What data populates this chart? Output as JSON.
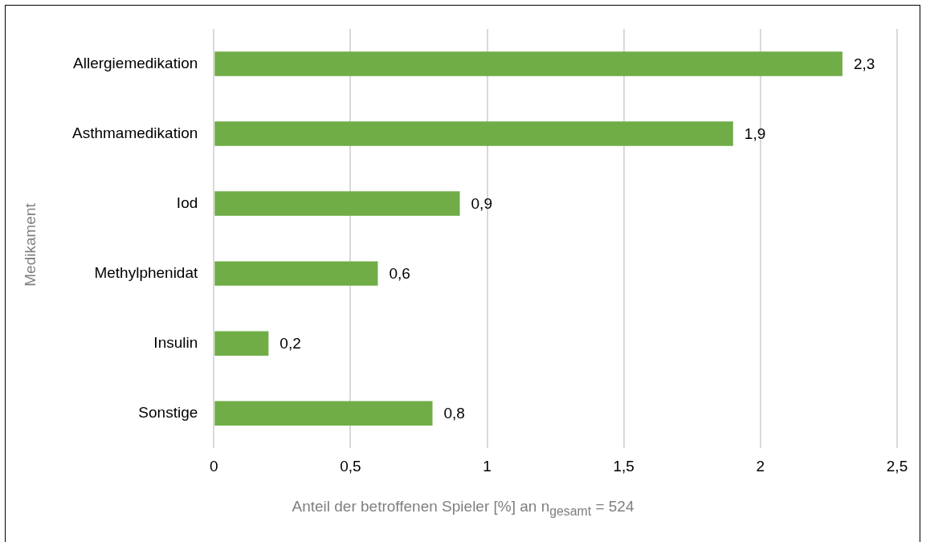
{
  "chart_data": {
    "type": "bar",
    "orientation": "horizontal",
    "xlabel": "Anteil der betroffenen Spieler [%] an n$_{gesamt}$ = 524",
    "ylabel": "Medikament",
    "categories": [
      "Allergiemedikation",
      "Asthmamedikation",
      "Iod",
      "Methylphenidat",
      "Insulin",
      "Sonstige"
    ],
    "values": [
      2.3,
      1.9,
      0.9,
      0.6,
      0.2,
      0.8
    ],
    "color": "#70ad47",
    "value_labels": [
      "2,3",
      "1,9",
      "0,9",
      "0,6",
      "0,2",
      "0,8"
    ],
    "xlim": [
      0,
      2.5
    ],
    "xticks": [
      0,
      {
        "value": 0.5,
        "label": "0,5"
      },
      1,
      {
        "value": 1.5,
        "label": "1,5"
      },
      2,
      {
        "value": 2.5,
        "label": "2,5"
      }
    ],
    "grid": "x",
    "legend": false
  }
}
